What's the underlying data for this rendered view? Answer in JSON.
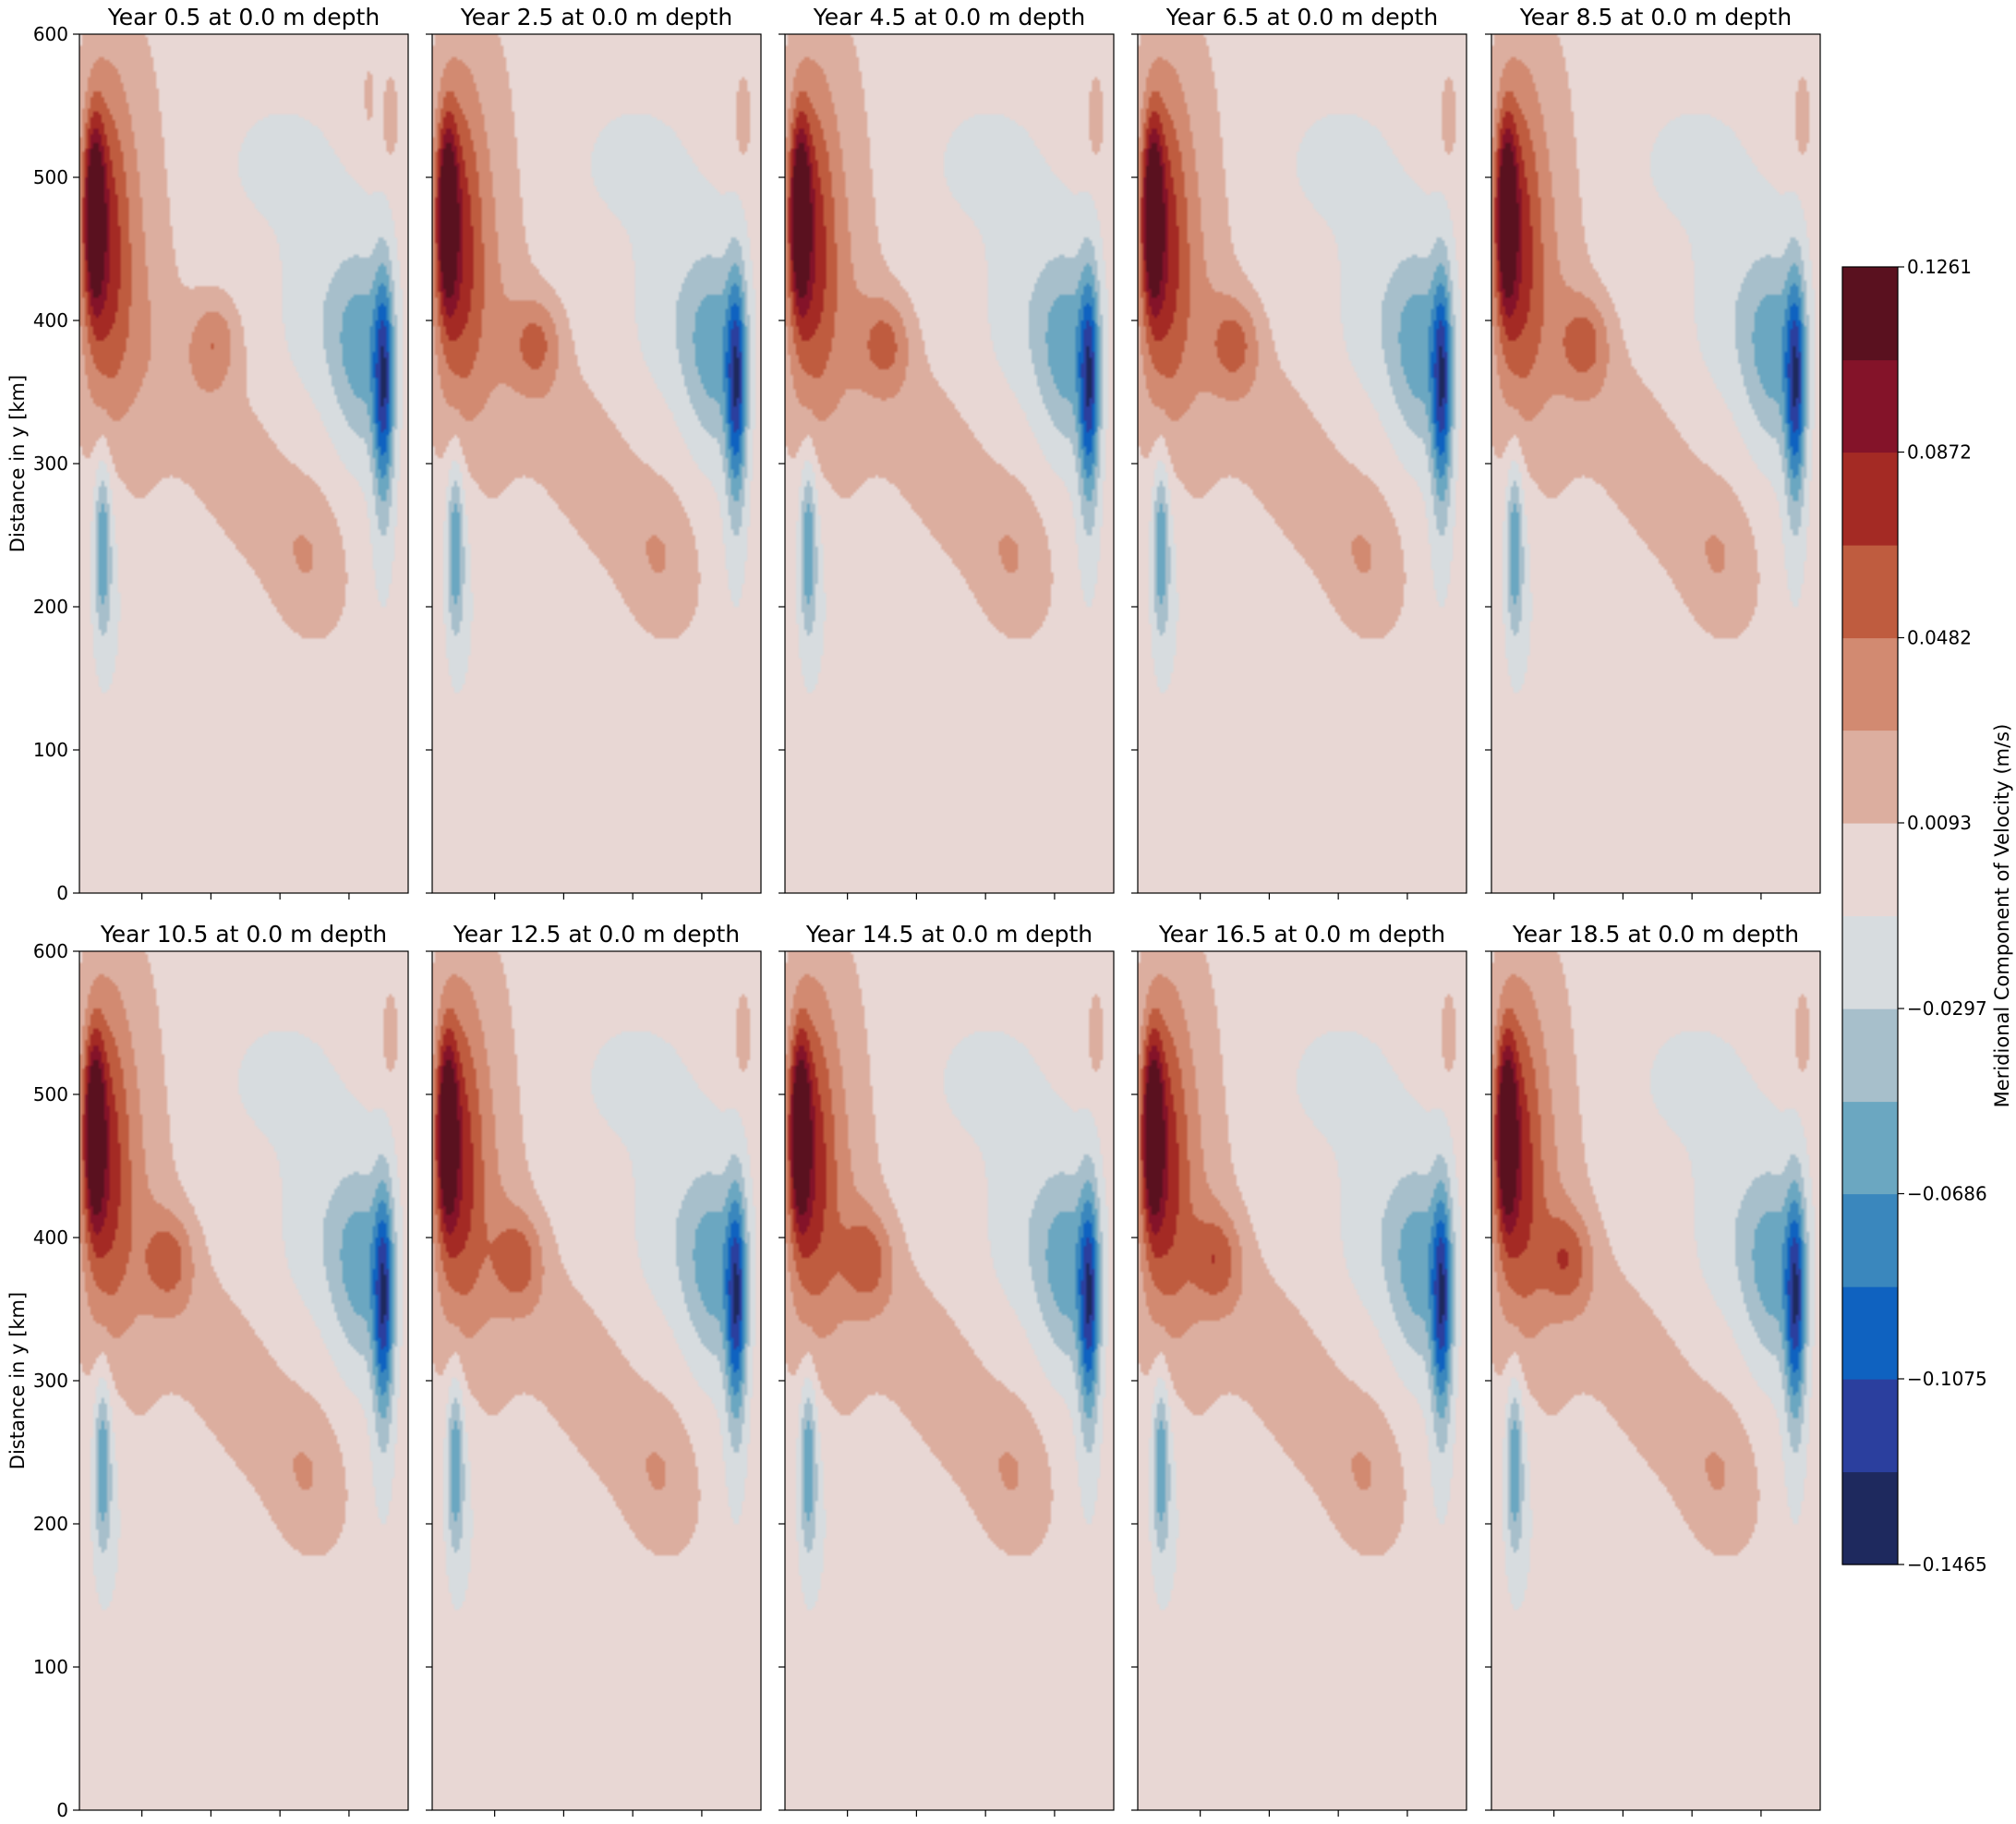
{
  "chart_data": {
    "type": "heatmap",
    "plot_kind": "filled contour",
    "panels": [
      {
        "title": "Year 0.5 at 0.0 m depth",
        "year": 0.5,
        "depth_m": 0.0
      },
      {
        "title": "Year 2.5 at 0.0 m depth",
        "year": 2.5,
        "depth_m": 0.0
      },
      {
        "title": "Year 4.5 at 0.0 m depth",
        "year": 4.5,
        "depth_m": 0.0
      },
      {
        "title": "Year 6.5 at 0.0 m depth",
        "year": 6.5,
        "depth_m": 0.0
      },
      {
        "title": "Year 8.5 at 0.0 m depth",
        "year": 8.5,
        "depth_m": 0.0
      },
      {
        "title": "Year 10.5 at 0.0 m depth",
        "year": 10.5,
        "depth_m": 0.0
      },
      {
        "title": "Year 12.5 at 0.0 m depth",
        "year": 12.5,
        "depth_m": 0.0
      },
      {
        "title": "Year 14.5 at 0.0 m depth",
        "year": 14.5,
        "depth_m": 0.0
      },
      {
        "title": "Year 16.5 at 0.0 m depth",
        "year": 16.5,
        "depth_m": 0.0
      },
      {
        "title": "Year 18.5 at 0.0 m depth",
        "year": 18.5,
        "depth_m": 0.0
      }
    ],
    "layout": {
      "rows": 2,
      "cols": 5
    },
    "ylabel": "Distance in y [km]",
    "ylim": [
      0,
      600
    ],
    "yticks": [
      "0",
      "100",
      "200",
      "300",
      "400",
      "500",
      "600"
    ],
    "xtick_labels_shown": false,
    "colorbar": {
      "label": "Meridional Component of Velocity (m/s)",
      "range": [
        -0.1465,
        0.1261
      ],
      "tick_labels": [
        "0.1261",
        "0.0872",
        "0.0482",
        "0.0093",
        "−0.0297",
        "−0.0686",
        "−0.1075",
        "−0.1465"
      ],
      "tick_values": [
        0.1261,
        0.0872,
        0.0482,
        0.0093,
        -0.0297,
        -0.0686,
        -0.1075,
        -0.1465
      ],
      "levels": [
        -0.1465,
        -0.127,
        -0.1075,
        -0.0881,
        -0.0686,
        -0.0492,
        -0.0297,
        -0.0102,
        0.0093,
        0.0288,
        0.0482,
        0.0677,
        0.0872,
        0.1066,
        0.1261
      ],
      "colors": [
        "#1e295e",
        "#2b3f9e",
        "#0f62c0",
        "#3a87bd",
        "#6ba7c1",
        "#a7bfcb",
        "#d7dcdf",
        "#e8d7d4",
        "#dcae9f",
        "#d28a71",
        "#bf5c3f",
        "#a42a24",
        "#841329",
        "#5a111f"
      ]
    },
    "field_features": [
      {
        "sign": "positive",
        "description_level": 0.11,
        "x_fraction": 0.06,
        "y_km": 470
      },
      {
        "sign": "negative",
        "description_level": -0.11,
        "x_fraction": 0.93,
        "y_km": 360
      },
      {
        "sign": "negative",
        "description_level": -0.05,
        "x_fraction": 0.06,
        "y_km": 250
      }
    ]
  }
}
